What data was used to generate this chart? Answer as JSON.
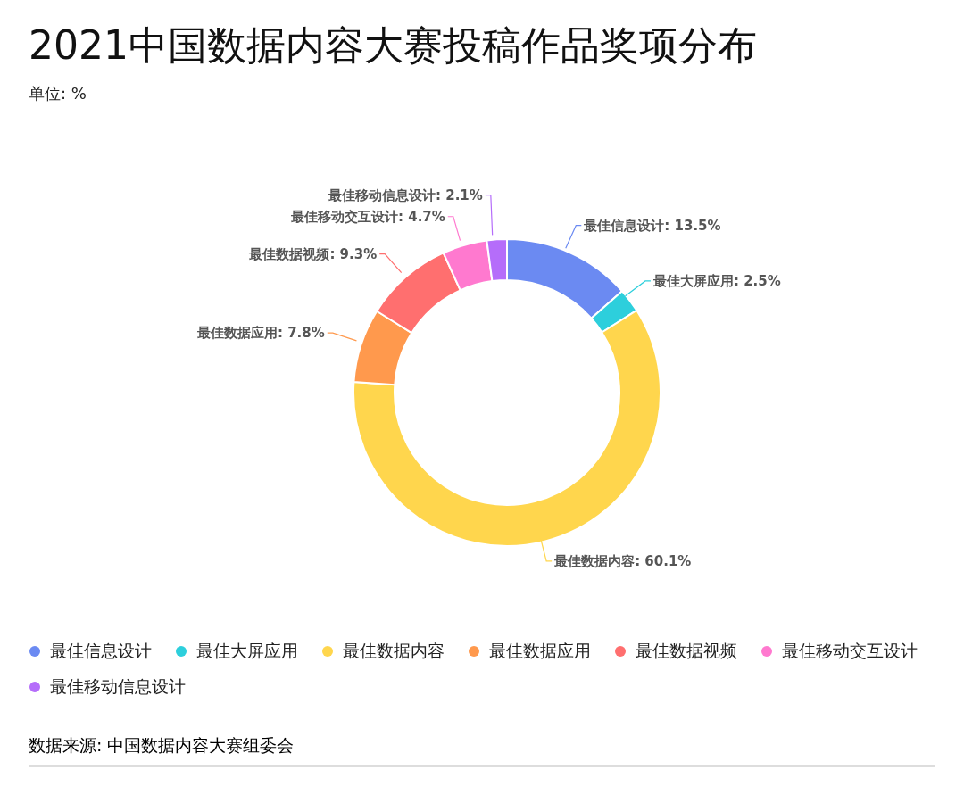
{
  "chart_data": {
    "type": "donut",
    "title": "2021中国数据内容大赛投稿作品奖项分布",
    "subtitle": "单位: %",
    "categories": [
      "最佳信息设计",
      "最佳大屏应用",
      "最佳数据内容",
      "最佳数据应用",
      "最佳数据视频",
      "最佳移动交互设计",
      "最佳移动信息设计"
    ],
    "values": [
      13.5,
      2.5,
      60.1,
      7.8,
      9.3,
      4.7,
      2.1
    ],
    "value_labels": [
      "最佳信息设计: 13.5%",
      "最佳大屏应用: 2.5%",
      "最佳数据内容: 60.1%",
      "最佳数据应用: 7.8%",
      "最佳数据视频: 9.3%",
      "最佳移动交互设计: 4.7%",
      "最佳移动信息设计: 2.1%"
    ],
    "colors": [
      "#6b8af2",
      "#2dcfdc",
      "#ffd64d",
      "#ff994d",
      "#ff6f6f",
      "#ff79cf",
      "#b56dfa"
    ],
    "legend": "bottom",
    "marker": "circle",
    "annotations": [
      "数据来源: 中国数据内容大赛组委会"
    ]
  }
}
